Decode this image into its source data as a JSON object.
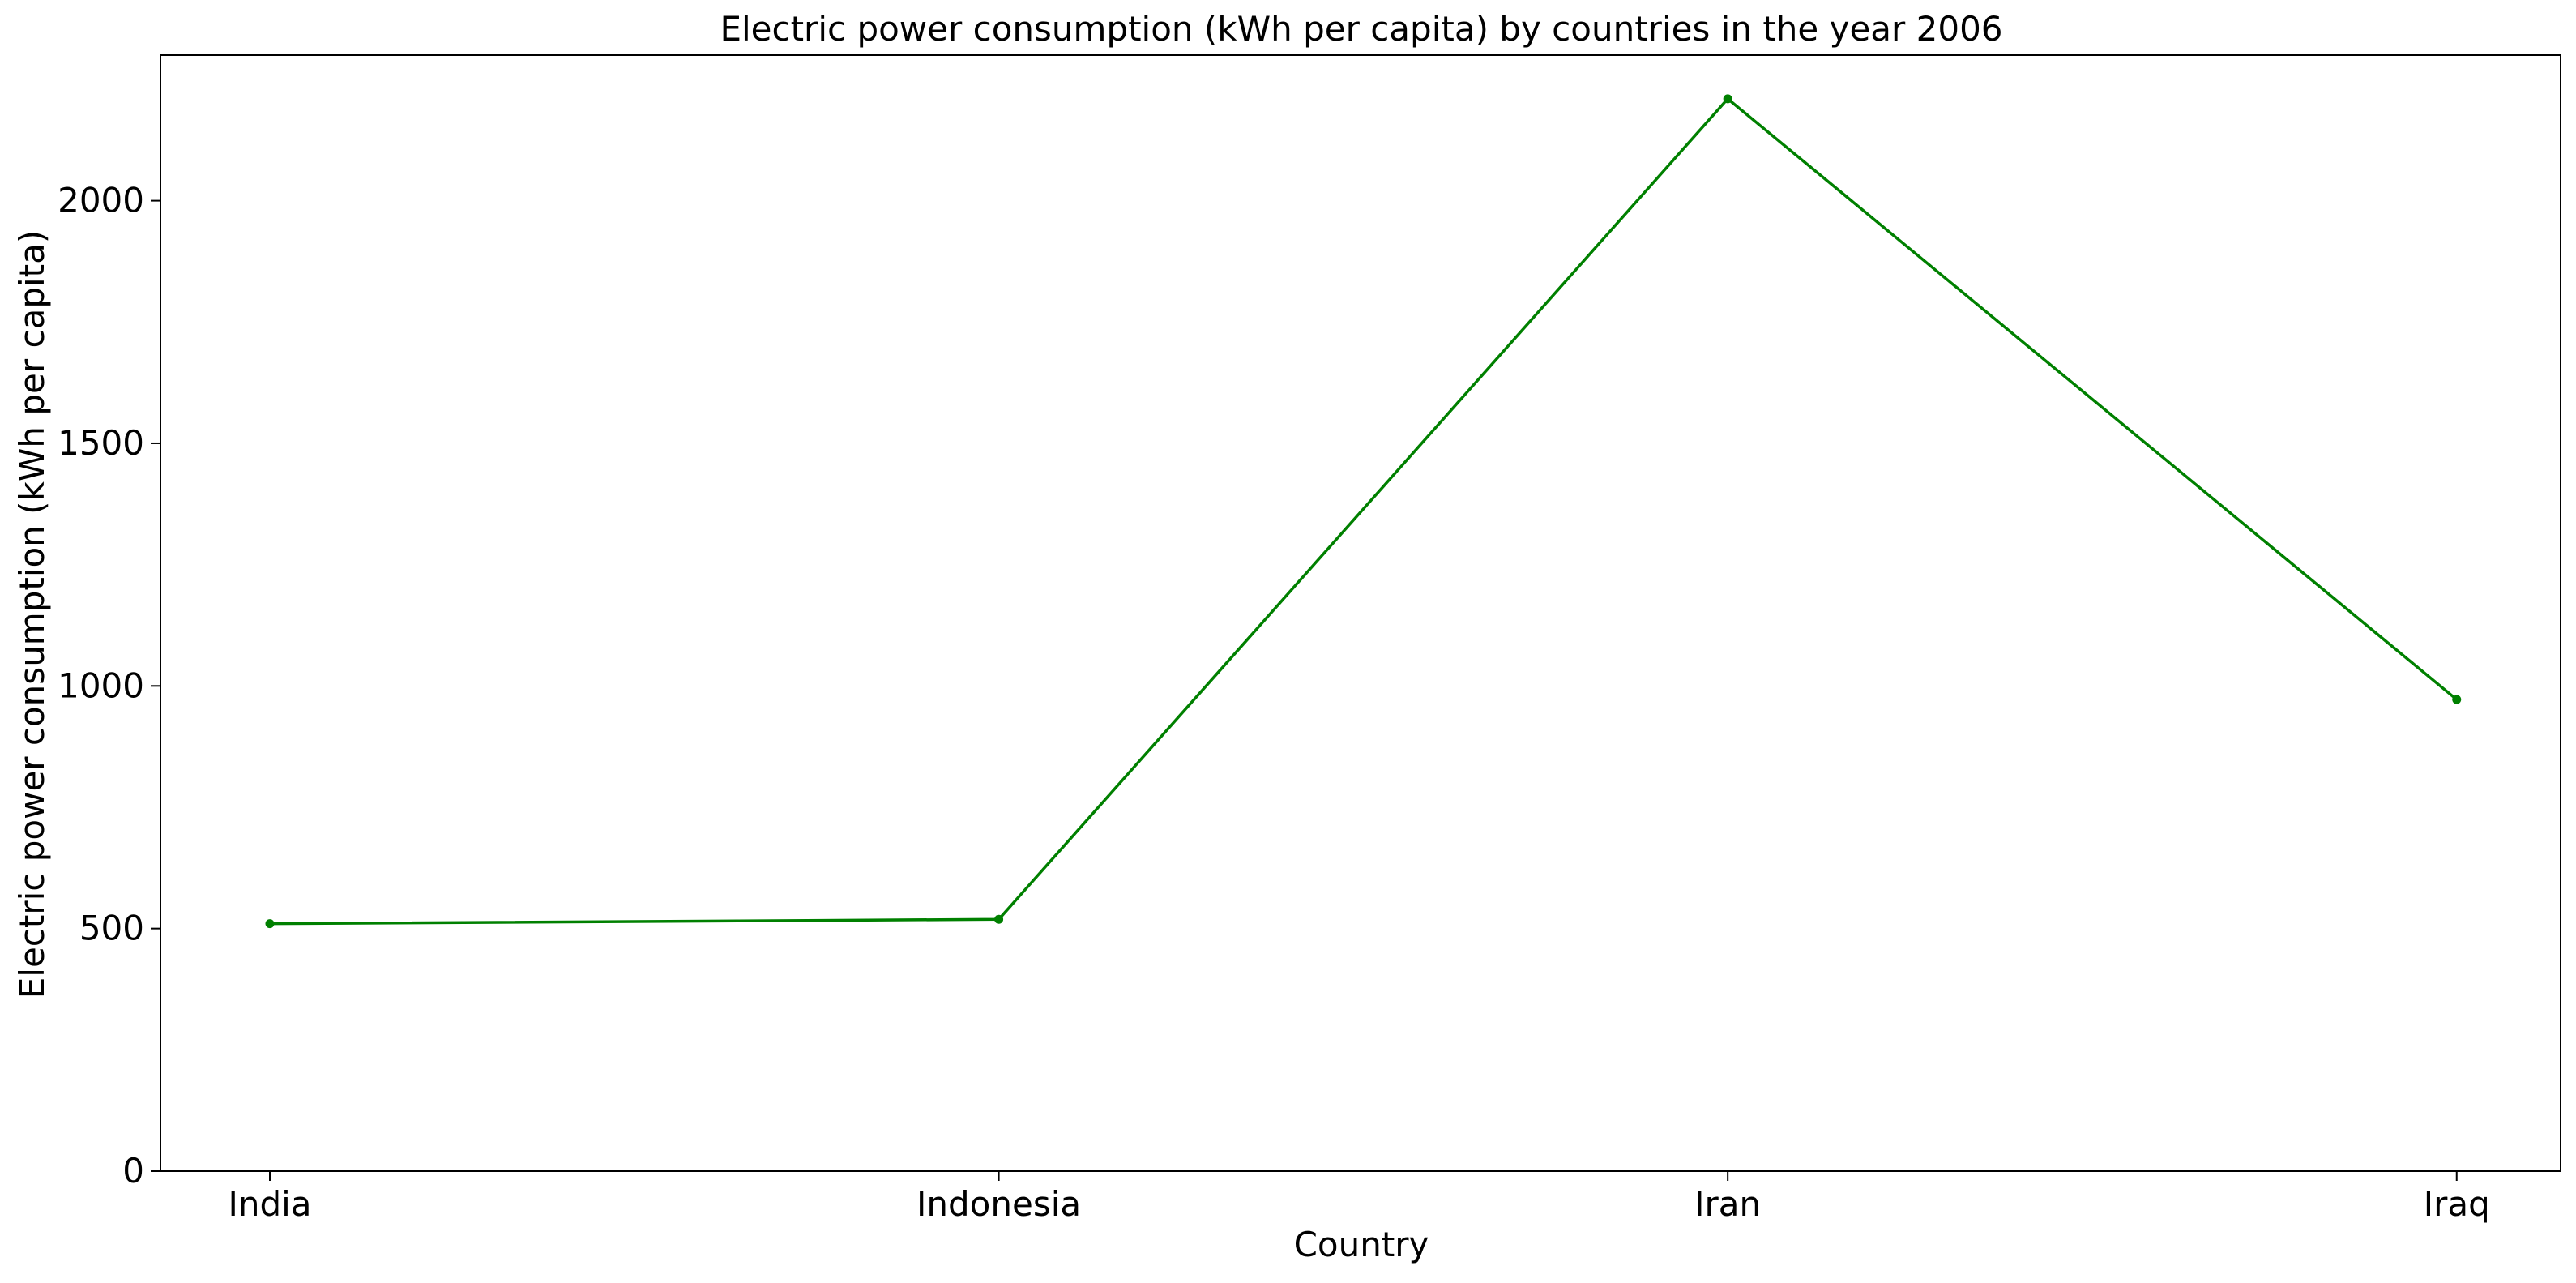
{
  "chart_data": {
    "type": "line",
    "title": "Electric power consumption (kWh per capita) by countries in the year 2006",
    "xlabel": "Country",
    "ylabel": "Electric power consumption (kWh per capita)",
    "categories": [
      "India",
      "Indonesia",
      "Iran",
      "Iraq"
    ],
    "series": [
      {
        "values": [
          510,
          519,
          2210,
          972
        ],
        "color": "#008000"
      }
    ],
    "ylim": [
      0,
      2300
    ],
    "yticks": [
      0,
      500,
      1000,
      1500,
      2000
    ],
    "ytick_labels": [
      "0",
      "500",
      "1000",
      "1500",
      "2000"
    ],
    "grid": false,
    "legend": "none"
  }
}
